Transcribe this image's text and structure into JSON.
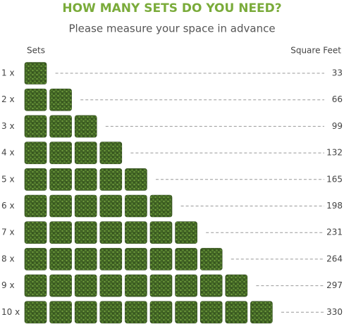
{
  "header": {
    "title": "HOW MANY SETS DO YOU NEED?",
    "subtitle": "Please measure your space in advance"
  },
  "columns": {
    "sets": "Sets",
    "area": "Square Feet"
  },
  "rows": [
    {
      "label": "1 x",
      "square_feet": 33
    },
    {
      "label": "2 x",
      "square_feet": 66
    },
    {
      "label": "3 x",
      "square_feet": 99
    },
    {
      "label": "4 x",
      "square_feet": 132
    },
    {
      "label": "5 x",
      "square_feet": 165
    },
    {
      "label": "6 x",
      "square_feet": 198
    },
    {
      "label": "7 x",
      "square_feet": 231
    },
    {
      "label": "8 x",
      "square_feet": 264
    },
    {
      "label": "9 x",
      "square_feet": 297
    },
    {
      "label": "10 x",
      "square_feet": 330
    }
  ]
}
